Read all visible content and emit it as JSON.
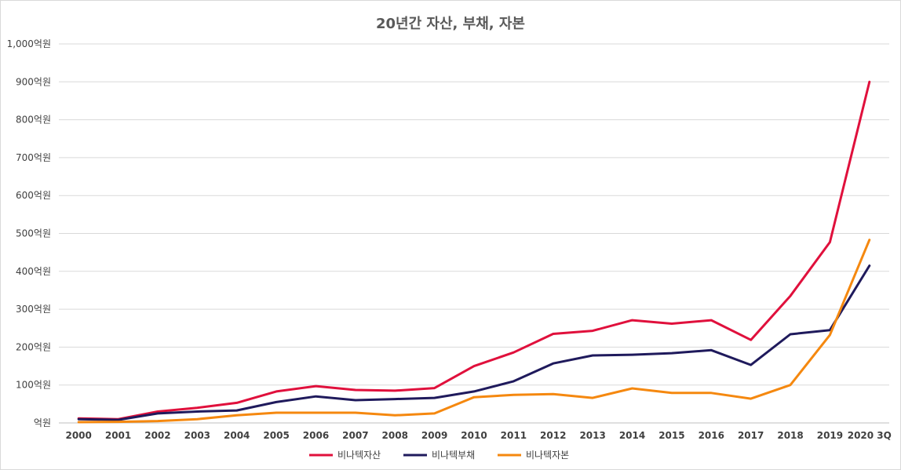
{
  "chart_data": {
    "type": "line",
    "title": "20년간 자산, 부채, 자본",
    "categories": [
      "2000",
      "2001",
      "2002",
      "2003",
      "2004",
      "2005",
      "2006",
      "2007",
      "2008",
      "2009",
      "2010",
      "2011",
      "2012",
      "2013",
      "2014",
      "2015",
      "2016",
      "2017",
      "2018",
      "2019",
      "2020 3Q"
    ],
    "y_tick_labels": [
      "억원",
      "100억원",
      "200억원",
      "300억원",
      "400억원",
      "500억원",
      "600억원",
      "700억원",
      "800억원",
      "900억원",
      "1,000억원"
    ],
    "y_tick_values": [
      0,
      100,
      200,
      300,
      400,
      500,
      600,
      700,
      800,
      900,
      1000
    ],
    "ylim": [
      0,
      1000
    ],
    "grid": true,
    "legend_position": "bottom",
    "series": [
      {
        "name": "비나텍자산",
        "color": "#e0103c",
        "values": [
          12,
          10,
          30,
          40,
          53,
          83,
          97,
          87,
          85,
          92,
          150,
          186,
          235,
          243,
          271,
          262,
          271,
          219,
          335,
          477,
          900
        ]
      },
      {
        "name": "비나텍부채",
        "color": "#1f1a5c",
        "values": [
          10,
          8,
          25,
          30,
          33,
          55,
          70,
          60,
          63,
          66,
          83,
          110,
          157,
          178,
          180,
          184,
          192,
          153,
          234,
          245,
          415
        ]
      },
      {
        "name": "비나텍자본",
        "color": "#f5880f",
        "values": [
          2,
          3,
          5,
          10,
          20,
          27,
          27,
          27,
          20,
          25,
          68,
          74,
          76,
          66,
          91,
          79,
          79,
          64,
          100,
          232,
          483
        ]
      }
    ]
  }
}
